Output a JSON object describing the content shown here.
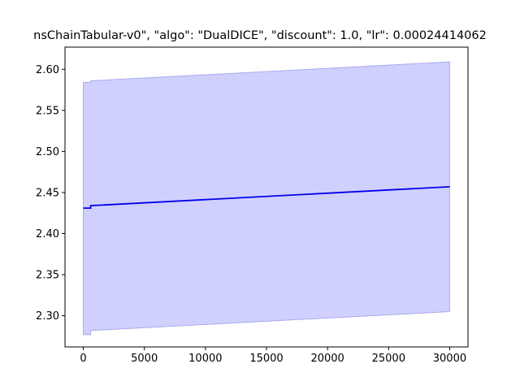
{
  "chart_data": {
    "type": "area",
    "title": "nsChainTabular-v0\", \"algo\": \"DualDICE\", \"discount\": 1.0, \"lr\": 0.00024414062",
    "xlabel": "",
    "ylabel": "",
    "xlim": [
      -1500,
      31500
    ],
    "ylim": [
      2.262,
      2.627
    ],
    "x_ticks": [
      0,
      5000,
      10000,
      15000,
      20000,
      25000,
      30000
    ],
    "y_ticks": [
      2.3,
      2.35,
      2.4,
      2.45,
      2.5,
      2.55,
      2.6
    ],
    "x_tick_labels": [
      "0",
      "5000",
      "10000",
      "15000",
      "20000",
      "25000",
      "30000"
    ],
    "y_tick_labels": [
      "2.30",
      "2.35",
      "2.40",
      "2.45",
      "2.50",
      "2.55",
      "2.60"
    ],
    "grid": false,
    "series": [
      {
        "color": "#0000ee",
        "x": [
          0,
          600,
          600,
          30000
        ],
        "mean": [
          2.431,
          2.431,
          2.434,
          2.457
        ],
        "upper": [
          2.584,
          2.584,
          2.586,
          2.609
        ],
        "lower": [
          2.277,
          2.277,
          2.282,
          2.305
        ]
      }
    ],
    "band_color": "#d0d0ff",
    "band_edge_color": "#aaaaee"
  }
}
